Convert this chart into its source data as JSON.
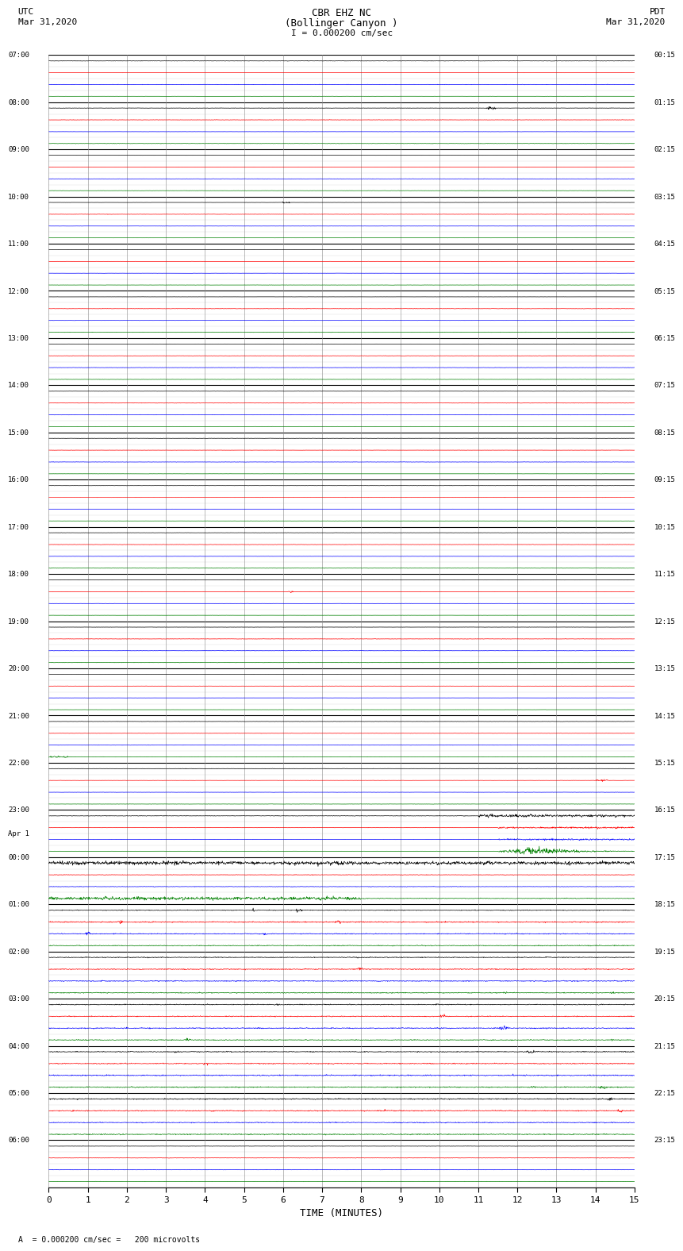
{
  "title_line1": "CBR EHZ NC",
  "title_line2": "(Bollinger Canyon )",
  "scale_label": "I = 0.000200 cm/sec",
  "left_label_top": "UTC",
  "left_label_date": "Mar 31,2020",
  "right_label_top": "PDT",
  "right_label_date": "Mar 31,2020",
  "bottom_label": "TIME (MINUTES)",
  "scale_note": "= 0.000200 cm/sec =   200 microvolts",
  "xlabel_ticks": [
    0,
    1,
    2,
    3,
    4,
    5,
    6,
    7,
    8,
    9,
    10,
    11,
    12,
    13,
    14,
    15
  ],
  "utc_times": [
    "07:00",
    "",
    "",
    "",
    "08:00",
    "",
    "",
    "",
    "09:00",
    "",
    "",
    "",
    "10:00",
    "",
    "",
    "",
    "11:00",
    "",
    "",
    "",
    "12:00",
    "",
    "",
    "",
    "13:00",
    "",
    "",
    "",
    "14:00",
    "",
    "",
    "",
    "15:00",
    "",
    "",
    "",
    "16:00",
    "",
    "",
    "",
    "17:00",
    "",
    "",
    "",
    "18:00",
    "",
    "",
    "",
    "19:00",
    "",
    "",
    "",
    "20:00",
    "",
    "",
    "",
    "21:00",
    "",
    "",
    "",
    "22:00",
    "",
    "",
    "",
    "23:00",
    "",
    "Apr 1",
    "",
    "00:00",
    "",
    "",
    "",
    "01:00",
    "",
    "",
    "",
    "02:00",
    "",
    "",
    "",
    "03:00",
    "",
    "",
    "",
    "04:00",
    "",
    "",
    "",
    "05:00",
    "",
    "",
    "",
    "06:00",
    "",
    "",
    ""
  ],
  "pdt_times": [
    "00:15",
    "",
    "",
    "",
    "01:15",
    "",
    "",
    "",
    "02:15",
    "",
    "",
    "",
    "03:15",
    "",
    "",
    "",
    "04:15",
    "",
    "",
    "",
    "05:15",
    "",
    "",
    "",
    "06:15",
    "",
    "",
    "",
    "07:15",
    "",
    "",
    "",
    "08:15",
    "",
    "",
    "",
    "09:15",
    "",
    "",
    "",
    "10:15",
    "",
    "",
    "",
    "11:15",
    "",
    "",
    "",
    "12:15",
    "",
    "",
    "",
    "13:15",
    "",
    "",
    "",
    "14:15",
    "",
    "",
    "",
    "15:15",
    "",
    "",
    "",
    "16:15",
    "",
    "",
    "",
    "17:15",
    "",
    "",
    "",
    "18:15",
    "",
    "",
    "",
    "19:15",
    "",
    "",
    "",
    "20:15",
    "",
    "",
    "",
    "21:15",
    "",
    "",
    "",
    "22:15",
    "",
    "",
    "",
    "23:15",
    "",
    "",
    ""
  ],
  "num_rows": 100,
  "bg_color": "#ffffff",
  "line_colors": [
    "black",
    "red",
    "blue",
    "green"
  ],
  "grid_color_v": "#888888",
  "noise_base": 0.008,
  "seismogram_lw": 0.5
}
